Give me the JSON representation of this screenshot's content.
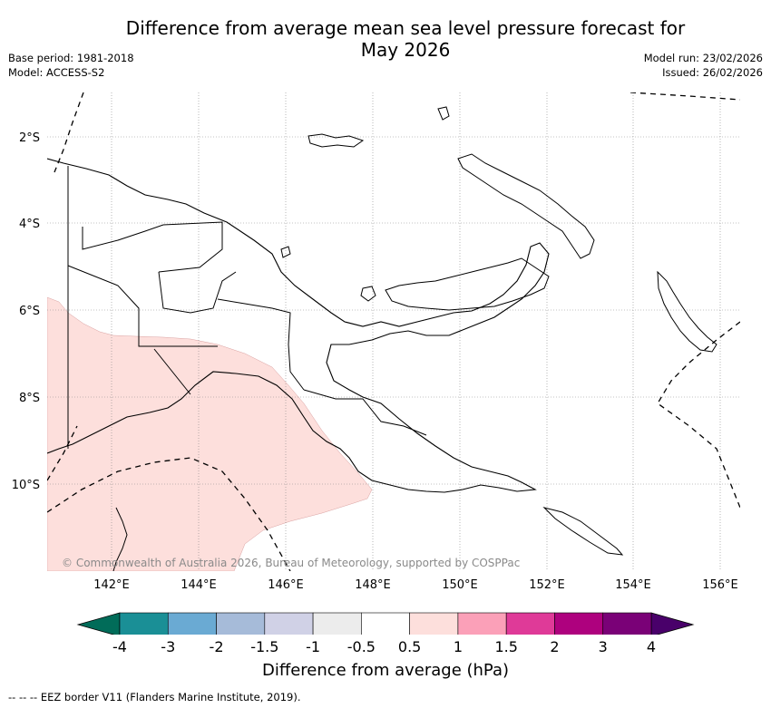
{
  "title_line1": "Difference from average mean sea level pressure forecast for",
  "title_line2": "May 2026",
  "base_period": "Base period: 1981-2018",
  "model": "Model: ACCESS-S2",
  "model_run": "Model run: 23/02/2026",
  "issued": "Issued: 26/02/2026",
  "lat_labels": [
    "2°S",
    "4°S",
    "6°S",
    "8°S",
    "10°S"
  ],
  "lon_labels": [
    "142°E",
    "144°E",
    "146°E",
    "148°E",
    "150°E",
    "152°E",
    "154°E",
    "156°E"
  ],
  "copyright": "© Commonwealth of Australia 2026, Bureau of Meteorology, supported by COSPPac",
  "colorbar": {
    "title": "Difference from average (hPa)",
    "ticks": [
      "-4",
      "-3",
      "-2",
      "-1.5",
      "-1",
      "-0.5",
      "0.5",
      "1",
      "1.5",
      "2",
      "3",
      "4"
    ],
    "colors": [
      "#1a8f96",
      "#6aaad3",
      "#a6bbd9",
      "#d0d1e6",
      "#ececec",
      "#ffffff",
      "#fddfdc",
      "#fba0b8",
      "#df3a98",
      "#ae017e",
      "#7a0177"
    ],
    "under_color": "#016c59",
    "over_color": "#49006a"
  },
  "legend_footer": "--  --  -- EEZ border V11 (Flanders Marine Institute, 2019).",
  "anomaly_color": "#fddfdc"
}
